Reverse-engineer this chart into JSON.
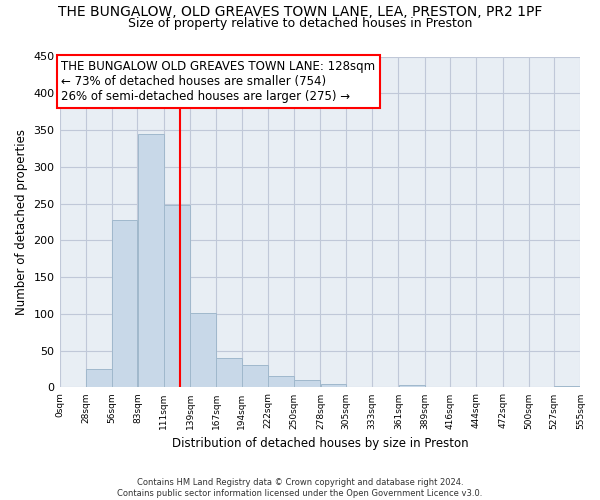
{
  "title": "THE BUNGALOW, OLD GREAVES TOWN LANE, LEA, PRESTON, PR2 1PF",
  "subtitle": "Size of property relative to detached houses in Preston",
  "xlabel": "Distribution of detached houses by size in Preston",
  "ylabel": "Number of detached properties",
  "bar_left_edges": [
    0,
    28,
    56,
    83,
    111,
    139,
    167,
    194,
    222,
    250,
    278,
    305,
    333,
    361,
    389,
    416,
    444,
    472,
    500,
    527
  ],
  "bar_widths": [
    28,
    28,
    27,
    28,
    28,
    28,
    27,
    28,
    28,
    28,
    27,
    28,
    28,
    28,
    27,
    28,
    28,
    28,
    27,
    28
  ],
  "bar_heights": [
    0,
    25,
    228,
    345,
    248,
    101,
    40,
    30,
    16,
    10,
    5,
    0,
    0,
    3,
    0,
    0,
    0,
    0,
    0,
    2
  ],
  "bar_color": "#c8d8e8",
  "bar_edgecolor": "#a0b8cc",
  "vline_x": 128,
  "vline_color": "red",
  "annotation_line1": "THE BUNGALOW OLD GREAVES TOWN LANE: 128sqm",
  "annotation_line2": "← 73% of detached houses are smaller (754)",
  "annotation_line3": "26% of semi-detached houses are larger (275) →",
  "xlim": [
    0,
    555
  ],
  "ylim": [
    0,
    450
  ],
  "xtick_positions": [
    0,
    28,
    56,
    83,
    111,
    139,
    167,
    194,
    222,
    250,
    278,
    305,
    333,
    361,
    389,
    416,
    444,
    472,
    500,
    527,
    555
  ],
  "xtick_labels": [
    "0sqm",
    "28sqm",
    "56sqm",
    "83sqm",
    "111sqm",
    "139sqm",
    "167sqm",
    "194sqm",
    "222sqm",
    "250sqm",
    "278sqm",
    "305sqm",
    "333sqm",
    "361sqm",
    "389sqm",
    "416sqm",
    "444sqm",
    "472sqm",
    "500sqm",
    "527sqm",
    "555sqm"
  ],
  "ytick_positions": [
    0,
    50,
    100,
    150,
    200,
    250,
    300,
    350,
    400,
    450
  ],
  "grid_color": "#c0c8d8",
  "plot_bg_color": "#e8eef4",
  "fig_bg_color": "#ffffff",
  "footer_text": "Contains HM Land Registry data © Crown copyright and database right 2024.\nContains public sector information licensed under the Open Government Licence v3.0.",
  "title_fontsize": 10,
  "subtitle_fontsize": 9,
  "annot_fontsize": 8.5
}
